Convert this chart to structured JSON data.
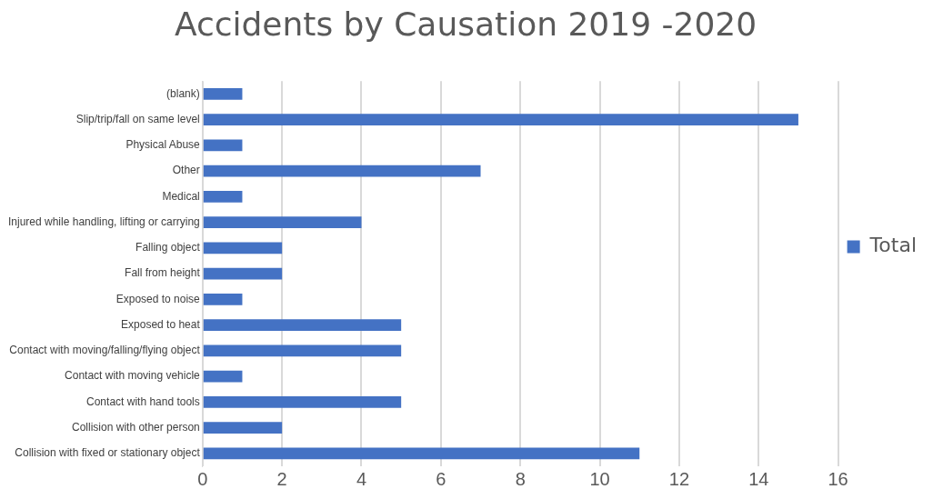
{
  "chart_data": {
    "type": "bar",
    "orientation": "horizontal",
    "title": "Accidents by Causation 2019 -2020",
    "categories": [
      "(blank)",
      "Slip/trip/fall on same level",
      "Physical Abuse",
      "Other",
      "Medical",
      "Injured while handling, lifting or carrying",
      "Falling object",
      "Fall from height",
      "Exposed to noise",
      "Exposed to heat",
      "Contact with moving/falling/flying object",
      "Contact with moving vehicle",
      "Contact with hand tools",
      "Collision with other person",
      "Collision with fixed or stationary object"
    ],
    "series": [
      {
        "name": "Total",
        "color": "#4472c4",
        "values": [
          1,
          15,
          1,
          7,
          1,
          4,
          2,
          2,
          1,
          5,
          5,
          1,
          5,
          2,
          11
        ]
      }
    ],
    "xlim": [
      0,
      16
    ],
    "xticks": [
      0,
      2,
      4,
      6,
      8,
      10,
      12,
      14,
      16
    ],
    "grid": "x",
    "legend": "right"
  }
}
